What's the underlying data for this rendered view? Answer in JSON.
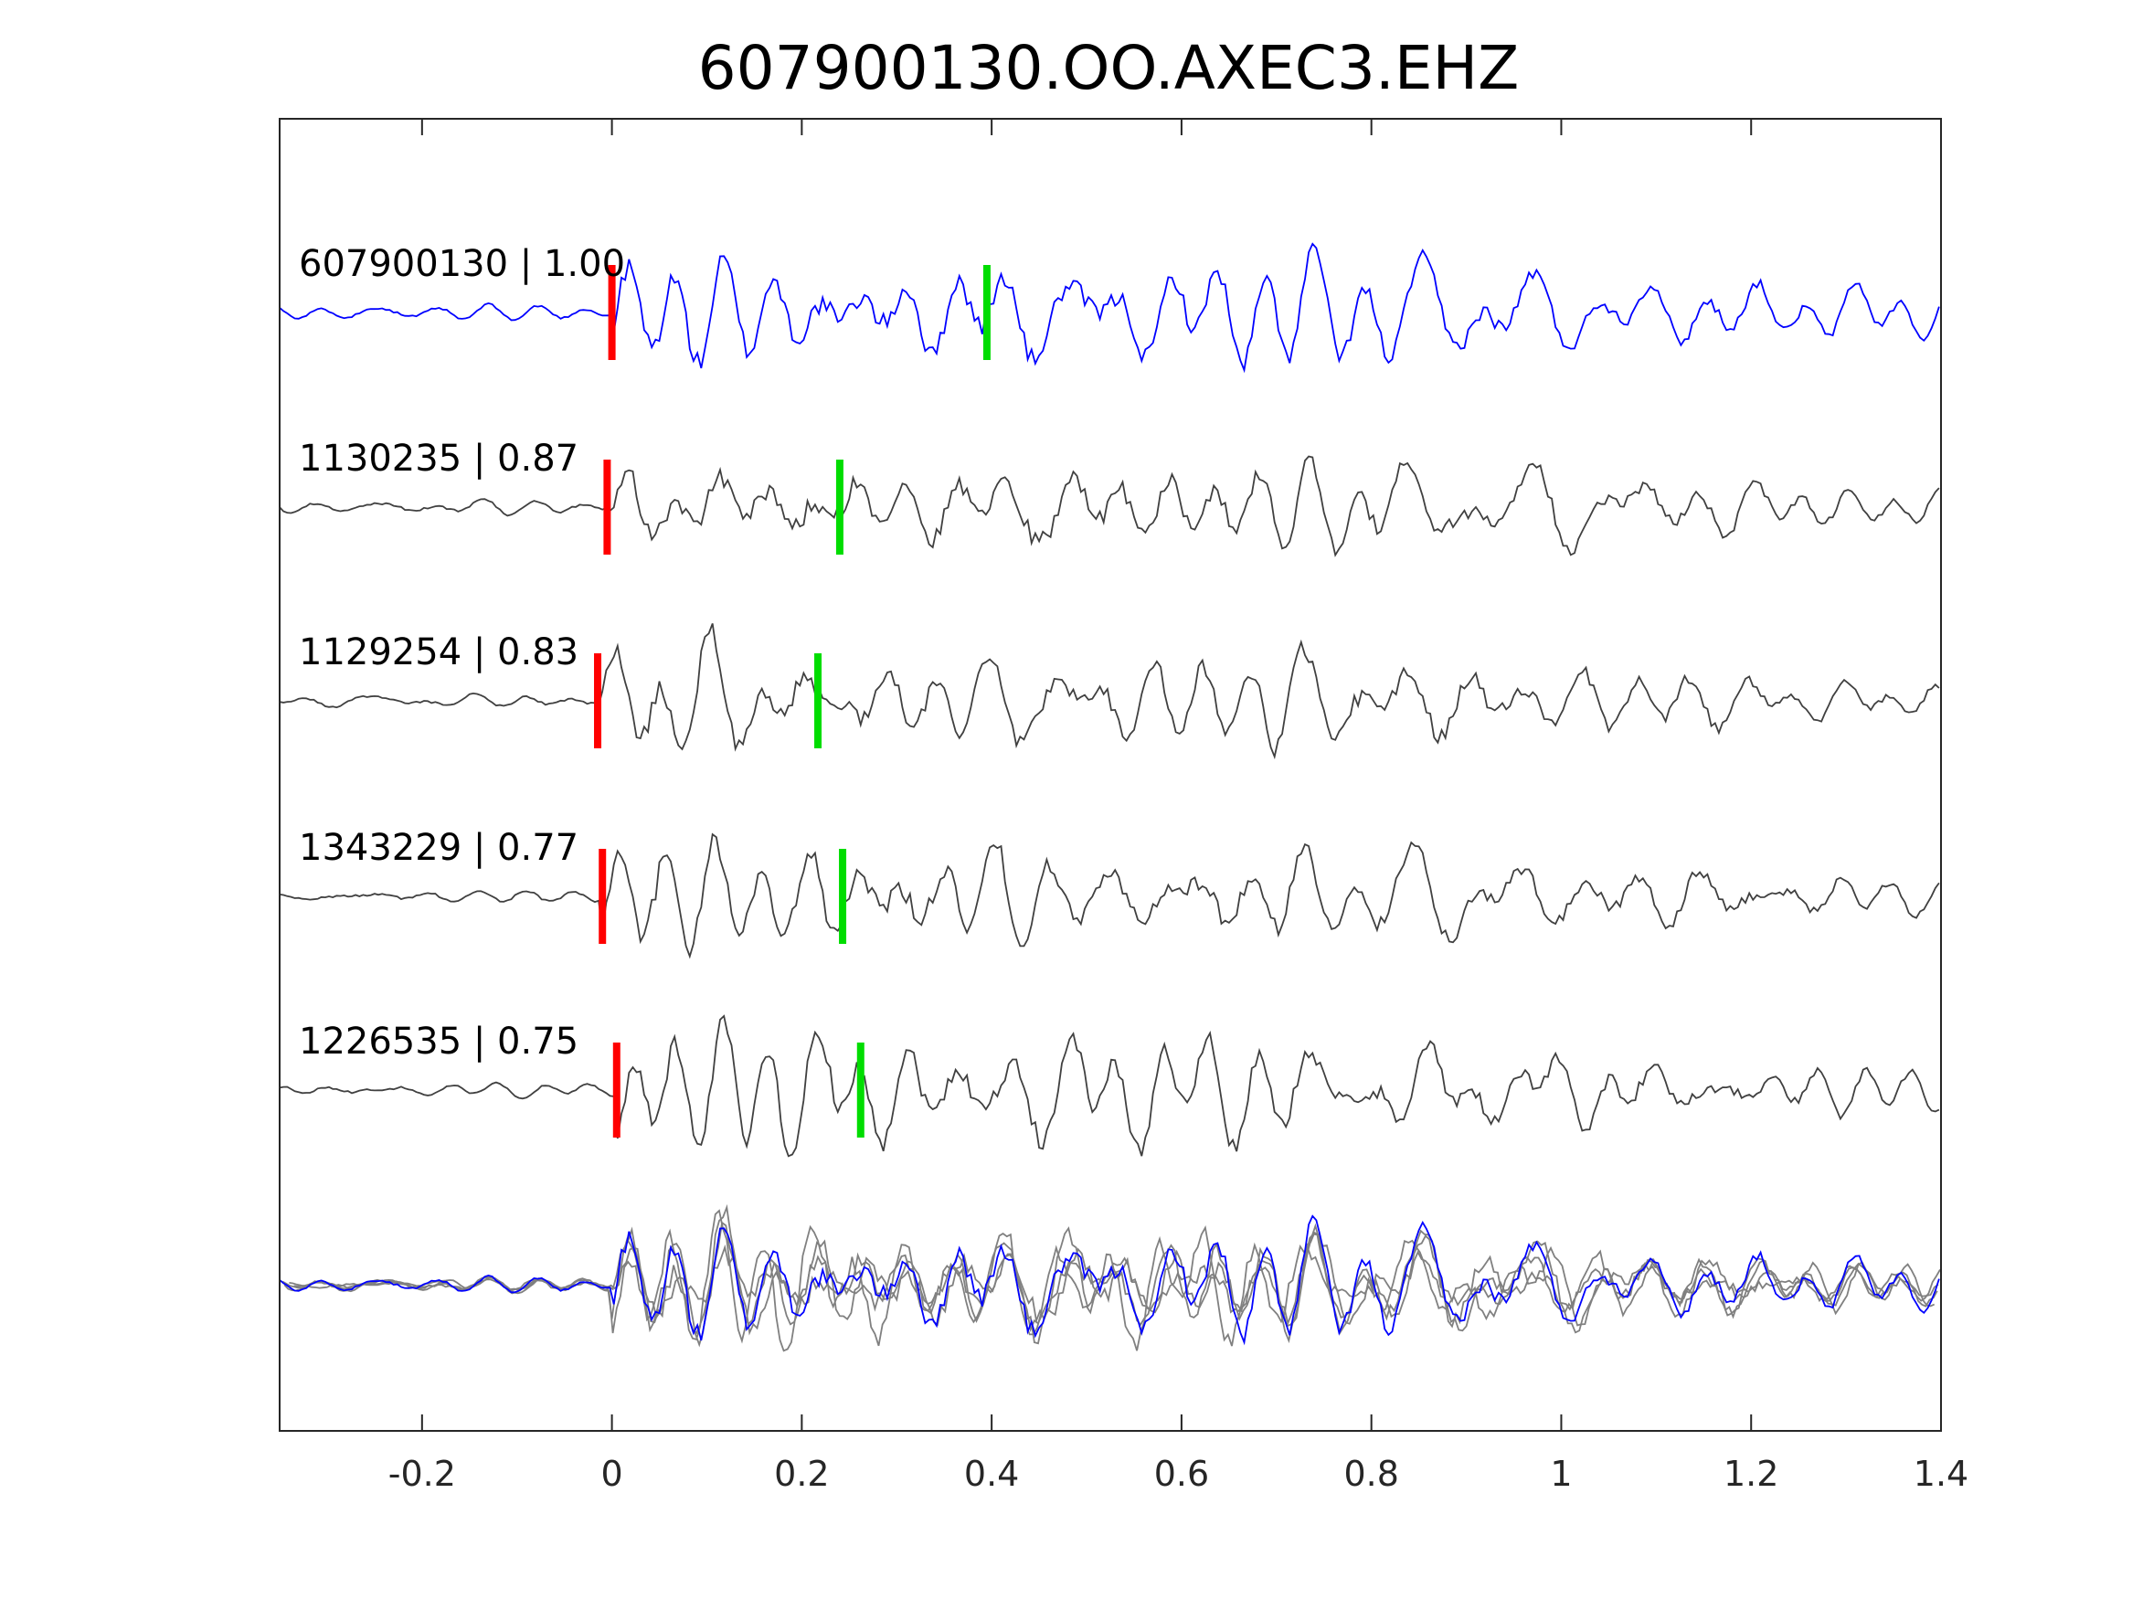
{
  "chart_data": {
    "type": "line",
    "title": "607900130.OO.AXEC3.EHZ",
    "xlabel": "",
    "ylabel": "",
    "xlim": [
      -0.35,
      1.4
    ],
    "xticks": [
      -0.2,
      0,
      0.2,
      0.4,
      0.6,
      0.8,
      1,
      1.2,
      1.4
    ],
    "xtick_labels": [
      "-0.2",
      "0",
      "0.2",
      "0.4",
      "0.6",
      "0.8",
      "1",
      "1.2",
      "1.4"
    ],
    "grid": false,
    "series": [
      {
        "name": "607900130",
        "label": "607900130 | 1.00",
        "correlation": 1.0,
        "color": "#0000ff",
        "p_pick": 0.0,
        "s_pick": 0.395
      },
      {
        "name": "1130235",
        "label": "1130235 | 0.87",
        "correlation": 0.87,
        "color": "#404040",
        "p_pick": -0.005,
        "s_pick": 0.24
      },
      {
        "name": "1129254",
        "label": "1129254 | 0.83",
        "correlation": 0.83,
        "color": "#404040",
        "p_pick": -0.015,
        "s_pick": 0.217
      },
      {
        "name": "1343229",
        "label": "1343229 | 0.77",
        "correlation": 0.77,
        "color": "#404040",
        "p_pick": -0.01,
        "s_pick": 0.243
      },
      {
        "name": "1226535",
        "label": "1226535 | 0.75",
        "correlation": 0.75,
        "color": "#404040",
        "p_pick": 0.005,
        "s_pick": 0.262
      }
    ],
    "overlay": {
      "description_color_main": "#0000ff",
      "description_color_others": "#808080"
    },
    "pick_colors": {
      "p": "#ff0000",
      "s": "#00dd00"
    }
  }
}
